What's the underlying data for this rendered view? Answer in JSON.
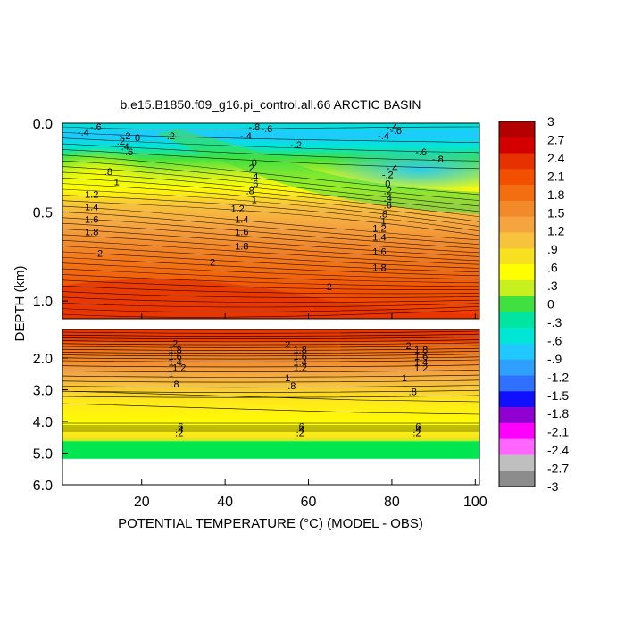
{
  "chart_data": {
    "type": "heatmap",
    "title": "b.e15.B1850.f09_g16.pi_control.all.66 ARCTIC BASIN",
    "xlabel": "POTENTIAL TEMPERATURE (°C) (MODEL - OBS)",
    "ylabel": "DEPTH (km)",
    "x_ticks": [
      "20",
      "40",
      "60",
      "80",
      "100"
    ],
    "x_tick_values": [
      20,
      40,
      60,
      80,
      100
    ],
    "xlim": [
      1,
      101
    ],
    "upper_panel": {
      "ylim": [
        0.0,
        1.1
      ],
      "y_ticks": [
        "0.0",
        "0.5",
        "1.0"
      ],
      "y_tick_values": [
        0.0,
        0.5,
        1.0
      ]
    },
    "lower_panel": {
      "ylim": [
        1.1,
        6.0
      ],
      "y_ticks": [
        "2.0",
        "3.0",
        "4.0",
        "5.0",
        "6.0"
      ],
      "y_tick_values": [
        2.0,
        3.0,
        4.0,
        5.0,
        6.0
      ]
    },
    "colorbar": {
      "levels": [
        "3",
        "2.7",
        "2.4",
        "2.1",
        "1.8",
        "1.5",
        "1.2",
        ".9",
        ".6",
        ".3",
        "0",
        "-.3",
        "-.6",
        "-.9",
        "-1.2",
        "-1.5",
        "-1.8",
        "-2.1",
        "-2.4",
        "-2.7",
        "-3"
      ],
      "colors": [
        "#b30000",
        "#d40000",
        "#e63200",
        "#f25000",
        "#f26e10",
        "#f28a2c",
        "#f5a540",
        "#f7c23c",
        "#f7e020",
        "#ffff00",
        "#c8f020",
        "#40e040",
        "#00e6a0",
        "#00e6d6",
        "#20c8ff",
        "#30a0ff",
        "#3070ff",
        "#1010ff",
        "#9000d0",
        "#ff00ff",
        "#ff66ff",
        "#bfbfbf",
        "#8c8c8c"
      ]
    },
    "contour_labels": [
      {
        "text": "-.6",
        "x": 9,
        "y": 0.02
      },
      {
        "text": "-.4",
        "x": 6,
        "y": 0.05
      },
      {
        "text": "-.8",
        "x": 47,
        "y": 0.02
      },
      {
        "text": "-.6",
        "x": 50,
        "y": 0.03
      },
      {
        "text": "-.4",
        "x": 45,
        "y": 0.07
      },
      {
        "text": "-.2",
        "x": 16,
        "y": 0.07
      },
      {
        "text": "0",
        "x": 19,
        "y": 0.08
      },
      {
        "text": ".2",
        "x": 27,
        "y": 0.07
      },
      {
        "text": "-.4",
        "x": 80,
        "y": 0.02
      },
      {
        "text": "-.6",
        "x": 81,
        "y": 0.04
      },
      {
        "text": "-.4",
        "x": 78,
        "y": 0.07
      },
      {
        "text": "-.2",
        "x": 57,
        "y": 0.12
      },
      {
        "text": "-.6",
        "x": 87,
        "y": 0.16
      },
      {
        "text": "-.8",
        "x": 91,
        "y": 0.2
      },
      {
        "text": ".2",
        "x": 15,
        "y": 0.1
      },
      {
        "text": ".4",
        "x": 16,
        "y": 0.13
      },
      {
        "text": ".6",
        "x": 17,
        "y": 0.16
      },
      {
        "text": "0",
        "x": 47,
        "y": 0.22
      },
      {
        "text": ".2",
        "x": 46,
        "y": 0.25
      },
      {
        "text": "-.4",
        "x": 80,
        "y": 0.25
      },
      {
        "text": "-.2",
        "x": 79,
        "y": 0.29
      },
      {
        "text": ".8",
        "x": 12,
        "y": 0.27
      },
      {
        "text": "1",
        "x": 14,
        "y": 0.33
      },
      {
        "text": ".4",
        "x": 47,
        "y": 0.3
      },
      {
        "text": ".6",
        "x": 47,
        "y": 0.34
      },
      {
        "text": ".8",
        "x": 46,
        "y": 0.38
      },
      {
        "text": "1",
        "x": 47,
        "y": 0.43
      },
      {
        "text": "0",
        "x": 79,
        "y": 0.34
      },
      {
        "text": ".2",
        "x": 79,
        "y": 0.38
      },
      {
        "text": ".4",
        "x": 79,
        "y": 0.42
      },
      {
        "text": ".6",
        "x": 79,
        "y": 0.46
      },
      {
        "text": ".8",
        "x": 78,
        "y": 0.51
      },
      {
        "text": "1.2",
        "x": 8,
        "y": 0.4
      },
      {
        "text": "1.4",
        "x": 8,
        "y": 0.47
      },
      {
        "text": "1.6",
        "x": 8,
        "y": 0.54
      },
      {
        "text": "1.8",
        "x": 8,
        "y": 0.61
      },
      {
        "text": "1.2",
        "x": 43,
        "y": 0.48
      },
      {
        "text": "1.4",
        "x": 44,
        "y": 0.54
      },
      {
        "text": "1.6",
        "x": 44,
        "y": 0.61
      },
      {
        "text": "1.8",
        "x": 44,
        "y": 0.69
      },
      {
        "text": "1",
        "x": 78,
        "y": 0.55
      },
      {
        "text": "1.2",
        "x": 77,
        "y": 0.59
      },
      {
        "text": "1.4",
        "x": 77,
        "y": 0.64
      },
      {
        "text": "1.6",
        "x": 77,
        "y": 0.72
      },
      {
        "text": "1.8",
        "x": 77,
        "y": 0.81
      },
      {
        "text": "2",
        "x": 10,
        "y": 0.73
      },
      {
        "text": "2",
        "x": 37,
        "y": 0.78
      },
      {
        "text": "2",
        "x": 65,
        "y": 0.92
      },
      {
        "text": "2",
        "x": 28,
        "y": 1.53
      },
      {
        "text": "1.8",
        "x": 28,
        "y": 1.73
      },
      {
        "text": "1.6",
        "x": 28,
        "y": 1.95
      },
      {
        "text": "1.4",
        "x": 28,
        "y": 2.13
      },
      {
        "text": "1.2",
        "x": 29,
        "y": 2.29
      },
      {
        "text": "1",
        "x": 27,
        "y": 2.49
      },
      {
        "text": ".8",
        "x": 28,
        "y": 2.82
      },
      {
        "text": "2",
        "x": 55,
        "y": 1.57
      },
      {
        "text": "1.8",
        "x": 58,
        "y": 1.73
      },
      {
        "text": "1.6",
        "x": 58,
        "y": 1.95
      },
      {
        "text": "1.4",
        "x": 58,
        "y": 2.13
      },
      {
        "text": "1.2",
        "x": 58,
        "y": 2.29
      },
      {
        "text": "1",
        "x": 55,
        "y": 2.62
      },
      {
        "text": ".8",
        "x": 56,
        "y": 2.87
      },
      {
        "text": "2",
        "x": 84,
        "y": 1.6
      },
      {
        "text": "1.8",
        "x": 87,
        "y": 1.73
      },
      {
        "text": "1.6",
        "x": 87,
        "y": 1.95
      },
      {
        "text": "1.4",
        "x": 87,
        "y": 2.13
      },
      {
        "text": "1.2",
        "x": 87,
        "y": 2.31
      },
      {
        "text": "1",
        "x": 83,
        "y": 2.62
      },
      {
        "text": ".8",
        "x": 85,
        "y": 3.06
      },
      {
        "text": ".6",
        "x": 29,
        "y": 4.15
      },
      {
        "text": ".4",
        "x": 29,
        "y": 4.25
      },
      {
        "text": ".2",
        "x": 29,
        "y": 4.35
      },
      {
        "text": ".6",
        "x": 58,
        "y": 4.15
      },
      {
        "text": ".4",
        "x": 58,
        "y": 4.25
      },
      {
        "text": ".2",
        "x": 58,
        "y": 4.35
      },
      {
        "text": ".6",
        "x": 86,
        "y": 4.15
      },
      {
        "text": ".4",
        "x": 86,
        "y": 4.25
      },
      {
        "text": ".2",
        "x": 86,
        "y": 4.35
      }
    ]
  }
}
